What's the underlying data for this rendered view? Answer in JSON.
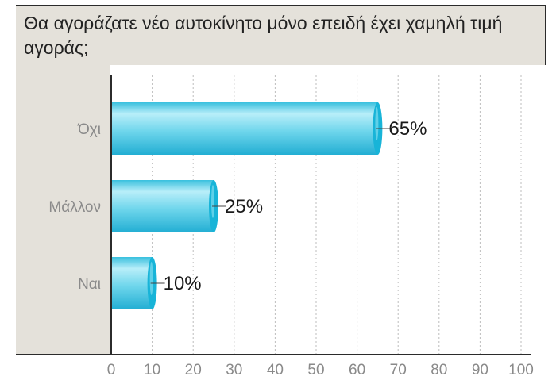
{
  "title": "Θα αγοράζατε νέο αυτοκίνητο μόνο επειδή έχει χαμηλή τιμή αγοράς;",
  "chart_data": {
    "type": "bar",
    "orientation": "horizontal",
    "title": "Θα αγοράζατε νέο αυτοκίνητο μόνο επειδή έχει χαμηλή τιμή αγοράς;",
    "categories": [
      "Όχι",
      "Μάλλον",
      "Ναι"
    ],
    "values": [
      65,
      25,
      10
    ],
    "value_labels": [
      "65%",
      "25%",
      "10%"
    ],
    "xlim": [
      0,
      100
    ],
    "xticks": [
      0,
      10,
      20,
      30,
      40,
      50,
      60,
      70,
      80,
      90,
      100
    ],
    "xlabel": "",
    "ylabel": "",
    "grid": true,
    "bar_color": "#5ccfe8",
    "bar_end_color": "#18b4d8"
  }
}
